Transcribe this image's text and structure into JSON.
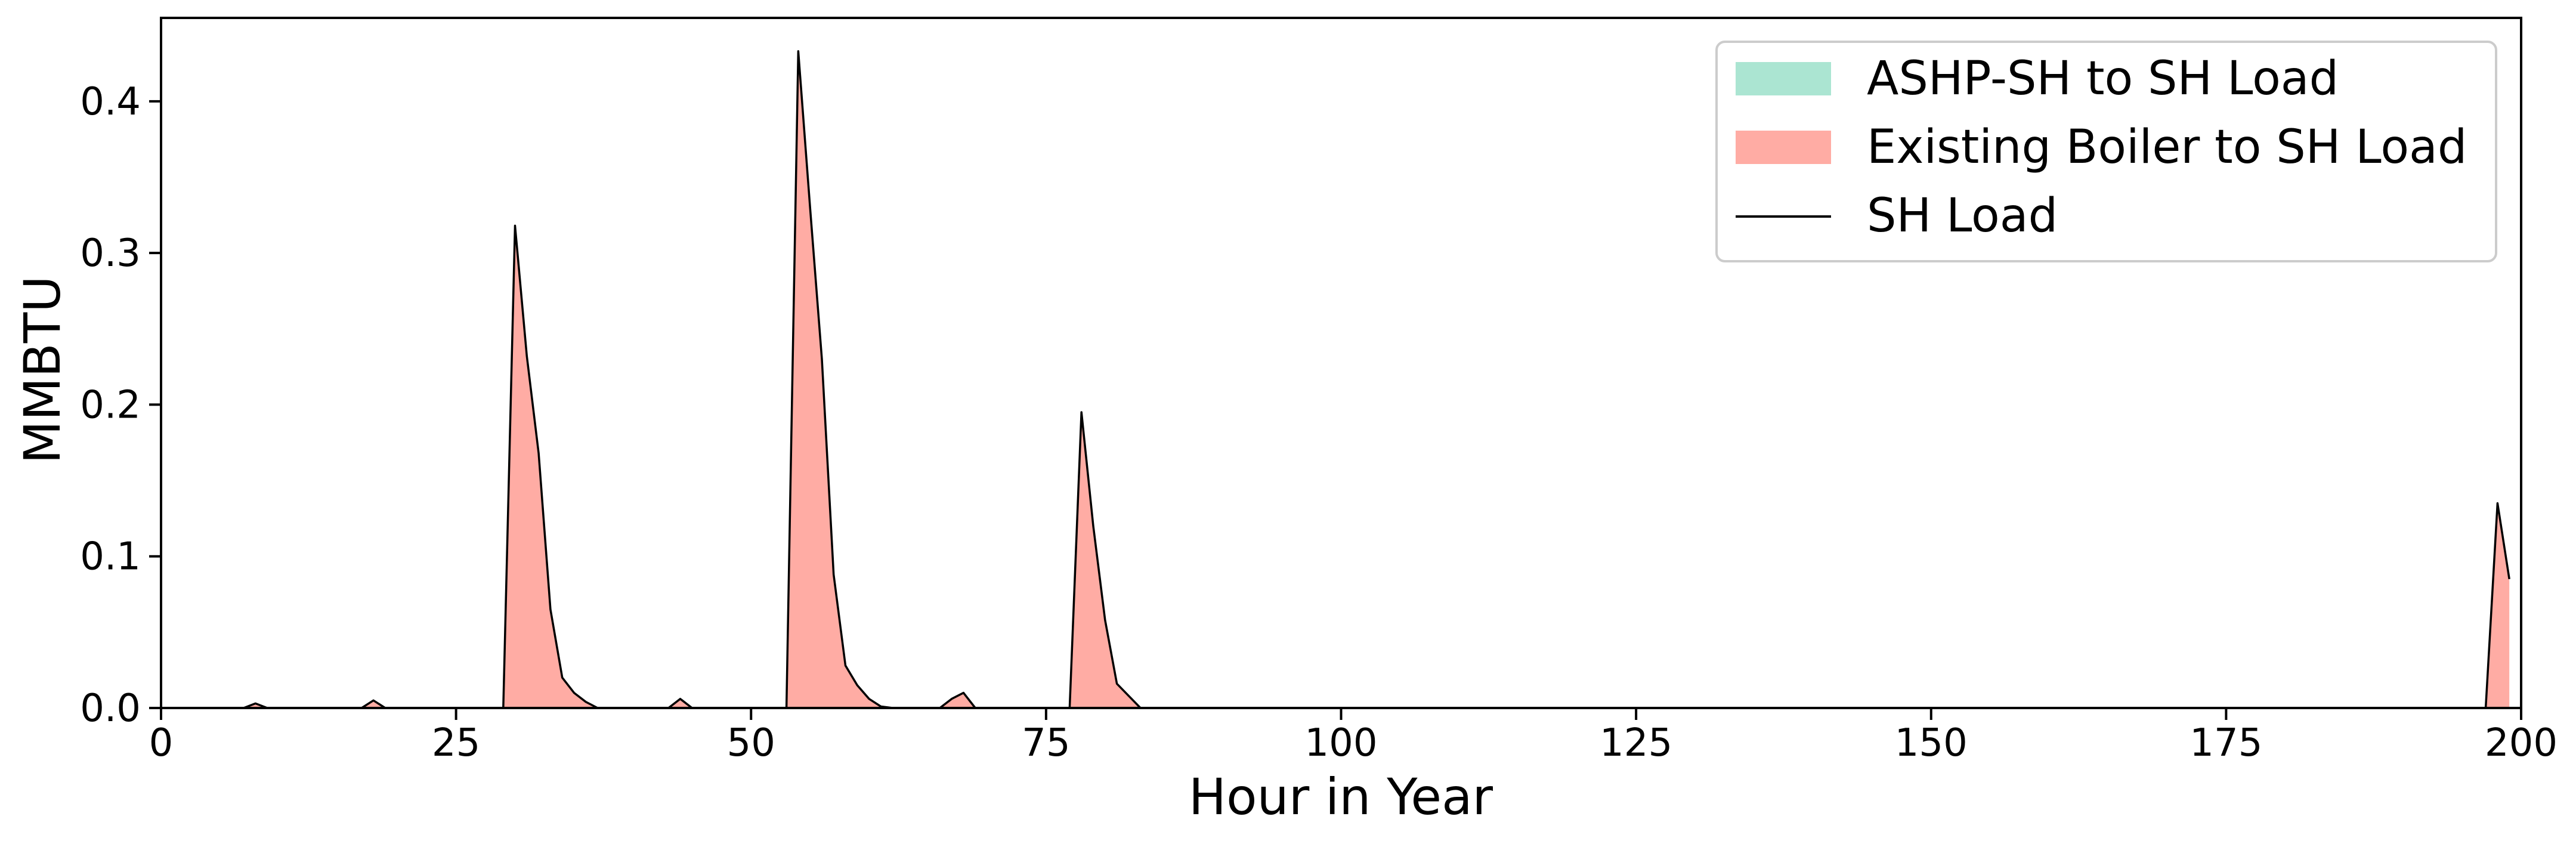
{
  "chart_data": {
    "type": "area",
    "title": "",
    "xlabel": "Hour in Year",
    "ylabel": "MMBTU",
    "xlim": [
      0,
      200
    ],
    "ylim": [
      0,
      0.455
    ],
    "xticks": [
      0,
      25,
      50,
      75,
      100,
      125,
      150,
      175,
      200
    ],
    "xtick_labels": [
      "0",
      "25",
      "50",
      "75",
      "100",
      "125",
      "150",
      "175",
      "200"
    ],
    "yticks": [
      0.0,
      0.1,
      0.2,
      0.3,
      0.4
    ],
    "ytick_labels": [
      "0.0",
      "0.1",
      "0.2",
      "0.3",
      "0.4"
    ],
    "grid": false,
    "legend_position": "top-right",
    "series": [
      {
        "name": "ASHP-SH to SH Load",
        "kind": "stacked-area",
        "color": "#abe5d2",
        "points": [
          [
            0,
            0
          ],
          [
            199,
            0
          ]
        ]
      },
      {
        "name": "Existing Boiler to SH Load",
        "kind": "stacked-area",
        "color": "#ffaca4",
        "points": [
          [
            0,
            0
          ],
          [
            7,
            0
          ],
          [
            8,
            0.003
          ],
          [
            9,
            0
          ],
          [
            17,
            0
          ],
          [
            18,
            0.005
          ],
          [
            19,
            0
          ],
          [
            29,
            0
          ],
          [
            30,
            0.318
          ],
          [
            31,
            0.232
          ],
          [
            32,
            0.168
          ],
          [
            33,
            0.065
          ],
          [
            34,
            0.02
          ],
          [
            35,
            0.01
          ],
          [
            36,
            0.004
          ],
          [
            37,
            0
          ],
          [
            43,
            0
          ],
          [
            44,
            0.006
          ],
          [
            45,
            0
          ],
          [
            53,
            0
          ],
          [
            54,
            0.433
          ],
          [
            55,
            0.33
          ],
          [
            56,
            0.23
          ],
          [
            57,
            0.088
          ],
          [
            58,
            0.028
          ],
          [
            59,
            0.015
          ],
          [
            60,
            0.006
          ],
          [
            61,
            0.001
          ],
          [
            62,
            0
          ],
          [
            66,
            0
          ],
          [
            67,
            0.006
          ],
          [
            68,
            0.01
          ],
          [
            69,
            0
          ],
          [
            77,
            0
          ],
          [
            78,
            0.195
          ],
          [
            79,
            0.12
          ],
          [
            80,
            0.058
          ],
          [
            81,
            0.016
          ],
          [
            82,
            0.008
          ],
          [
            83,
            0
          ],
          [
            197,
            0
          ],
          [
            198,
            0.135
          ],
          [
            199,
            0.085
          ]
        ]
      },
      {
        "name": "SH Load",
        "kind": "line",
        "color": "#000000",
        "points": [
          [
            0,
            0
          ],
          [
            7,
            0
          ],
          [
            8,
            0.003
          ],
          [
            9,
            0
          ],
          [
            17,
            0
          ],
          [
            18,
            0.005
          ],
          [
            19,
            0
          ],
          [
            29,
            0
          ],
          [
            30,
            0.318
          ],
          [
            31,
            0.232
          ],
          [
            32,
            0.168
          ],
          [
            33,
            0.065
          ],
          [
            34,
            0.02
          ],
          [
            35,
            0.01
          ],
          [
            36,
            0.004
          ],
          [
            37,
            0
          ],
          [
            43,
            0
          ],
          [
            44,
            0.006
          ],
          [
            45,
            0
          ],
          [
            53,
            0
          ],
          [
            54,
            0.433
          ],
          [
            55,
            0.33
          ],
          [
            56,
            0.23
          ],
          [
            57,
            0.088
          ],
          [
            58,
            0.028
          ],
          [
            59,
            0.015
          ],
          [
            60,
            0.006
          ],
          [
            61,
            0.001
          ],
          [
            62,
            0
          ],
          [
            66,
            0
          ],
          [
            67,
            0.006
          ],
          [
            68,
            0.01
          ],
          [
            69,
            0
          ],
          [
            77,
            0
          ],
          [
            78,
            0.195
          ],
          [
            79,
            0.12
          ],
          [
            80,
            0.058
          ],
          [
            81,
            0.016
          ],
          [
            82,
            0.008
          ],
          [
            83,
            0
          ],
          [
            197,
            0
          ],
          [
            198,
            0.135
          ],
          [
            199,
            0.085
          ]
        ]
      }
    ]
  }
}
